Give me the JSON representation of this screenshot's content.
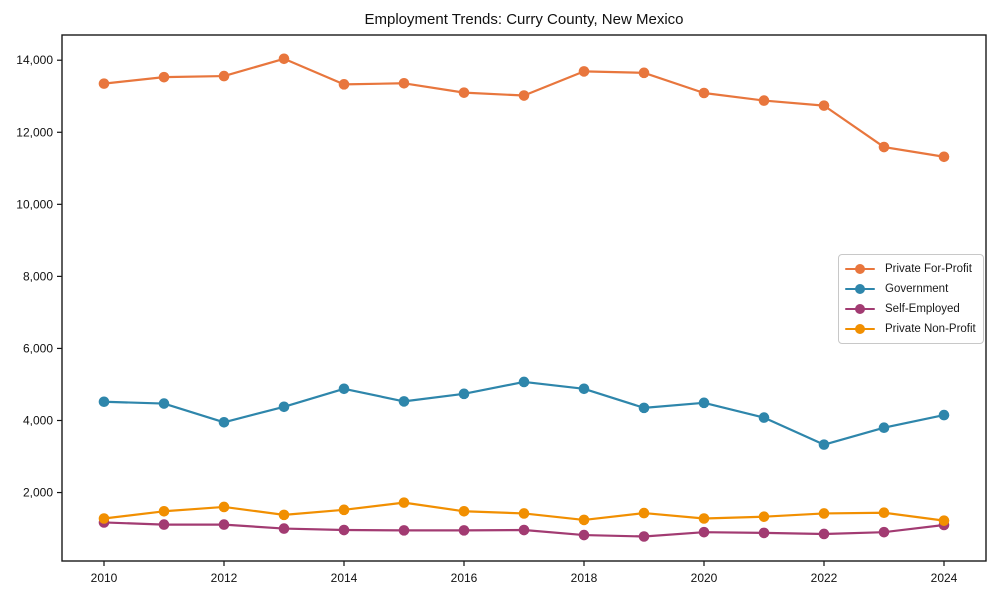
{
  "page": {
    "background": "#ffffff"
  },
  "chart": {
    "title": "Employment Trends: Curry County, New Mexico"
  },
  "chart_data": {
    "type": "line",
    "title": "Employment Trends: Curry County, New Mexico",
    "xlabel": "",
    "ylabel": "",
    "x": [
      2010,
      2011,
      2012,
      2013,
      2014,
      2015,
      2016,
      2017,
      2018,
      2019,
      2020,
      2021,
      2022,
      2023,
      2024
    ],
    "series": [
      {
        "name": "Private For-Profit",
        "color": "#E8763D",
        "values": [
          13350,
          13530,
          13560,
          14040,
          13330,
          13360,
          13100,
          13020,
          13690,
          13650,
          13090,
          12880,
          12740,
          11590,
          11320
        ]
      },
      {
        "name": "Government",
        "color": "#2E86AB",
        "values": [
          4520,
          4470,
          3950,
          4380,
          4880,
          4530,
          4740,
          5070,
          4880,
          4350,
          4490,
          4080,
          3330,
          3800,
          4150
        ]
      },
      {
        "name": "Self-Employed",
        "color": "#A23B72",
        "values": [
          1170,
          1110,
          1110,
          1000,
          960,
          950,
          950,
          960,
          820,
          780,
          900,
          880,
          850,
          900,
          1100
        ]
      },
      {
        "name": "Private Non-Profit",
        "color": "#F18F01",
        "values": [
          1280,
          1480,
          1600,
          1380,
          1520,
          1720,
          1480,
          1420,
          1240,
          1430,
          1280,
          1330,
          1420,
          1440,
          1220
        ]
      }
    ],
    "xticks": [
      "2010",
      "2012",
      "2014",
      "2016",
      "2018",
      "2020",
      "2022",
      "2024"
    ],
    "yticks": [
      2000,
      4000,
      6000,
      8000,
      10000,
      12000,
      14000
    ],
    "ytick_labels": [
      "2,000",
      "4,000",
      "6,000",
      "8,000",
      "10,000",
      "12,000",
      "14,000"
    ],
    "xlim": [
      2009.3,
      2024.7
    ],
    "ylim": [
      100,
      14700
    ],
    "grid": false,
    "legend": {
      "position": "center-right",
      "items": [
        "Private For-Profit",
        "Government",
        "Self-Employed",
        "Private Non-Profit"
      ]
    }
  }
}
